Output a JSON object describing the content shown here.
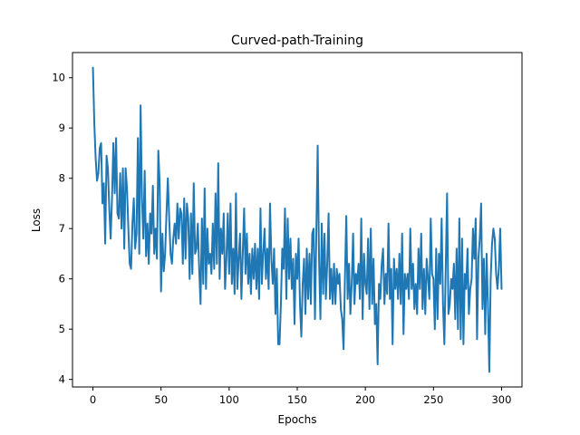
{
  "chart_data": {
    "type": "line",
    "title": "Curved-path-Training",
    "xlabel": "Epochs",
    "ylabel": "Loss",
    "xlim": [
      -15,
      315
    ],
    "ylim": [
      3.85,
      10.5
    ],
    "xticks": [
      0,
      50,
      100,
      150,
      200,
      250,
      300
    ],
    "yticks": [
      4,
      5,
      6,
      7,
      8,
      9,
      10
    ],
    "grid": false,
    "line_color": "#1f77b4",
    "series": [
      {
        "values": [
          10.2,
          9.1,
          8.4,
          7.95,
          8.1,
          8.6,
          8.7,
          7.5,
          7.9,
          6.7,
          8.45,
          8.2,
          7.4,
          6.8,
          7.6,
          8.7,
          7.7,
          8.8,
          7.3,
          7.2,
          8.1,
          7.0,
          8.2,
          6.6,
          8.2,
          7.8,
          7.0,
          6.3,
          6.2,
          7.1,
          7.6,
          6.6,
          6.9,
          8.8,
          6.5,
          9.45,
          7.6,
          6.8,
          8.15,
          6.45,
          7.1,
          6.3,
          7.3,
          6.9,
          7.85,
          6.5,
          7.0,
          6.4,
          8.55,
          7.9,
          5.75,
          6.9,
          6.15,
          6.5,
          7.3,
          8.0,
          7.2,
          6.5,
          6.3,
          6.8,
          7.1,
          6.7,
          7.5,
          6.8,
          7.4,
          7.3,
          6.3,
          7.6,
          6.4,
          7.5,
          7.2,
          6.0,
          7.3,
          6.1,
          7.9,
          6.5,
          6.6,
          7.1,
          6.2,
          5.5,
          7.2,
          5.9,
          7.8,
          5.8,
          7.0,
          6.3,
          6.5,
          6.1,
          7.1,
          6.2,
          7.7,
          6.3,
          8.3,
          6.0,
          7.0,
          6.5,
          7.3,
          5.8,
          6.4,
          7.3,
          6.1,
          7.5,
          5.9,
          6.6,
          5.7,
          7.7,
          5.8,
          6.4,
          6.9,
          5.6,
          6.5,
          7.4,
          6.1,
          6.9,
          5.9,
          6.5,
          5.7,
          6.6,
          6.0,
          6.7,
          5.8,
          6.6,
          5.6,
          7.4,
          5.9,
          6.5,
          7.0,
          6.0,
          6.6,
          5.8,
          7.5,
          6.4,
          5.9,
          6.6,
          5.3,
          6.2,
          4.7,
          4.7,
          5.5,
          6.6,
          6.2,
          7.4,
          5.6,
          7.2,
          6.0,
          6.8,
          5.8,
          6.4,
          5.1,
          6.5,
          6.0,
          6.8,
          5.5,
          4.85,
          5.9,
          6.4,
          5.3,
          6.6,
          5.6,
          6.5,
          5.5,
          6.9,
          7.0,
          5.2,
          6.9,
          8.65,
          6.4,
          5.2,
          7.1,
          5.7,
          6.9,
          5.6,
          6.3,
          7.3,
          5.6,
          6.2,
          5.5,
          6.3,
          5.5,
          6.2,
          5.9,
          6.1,
          5.4,
          5.2,
          4.6,
          6.0,
          7.25,
          5.6,
          6.3,
          5.3,
          5.9,
          6.9,
          5.5,
          6.1,
          5.9,
          6.3,
          5.6,
          7.2,
          5.2,
          6.5,
          5.9,
          5.7,
          6.8,
          5.4,
          7.0,
          5.5,
          6.4,
          5.1,
          5.5,
          4.3,
          5.9,
          5.6,
          6.3,
          6.6,
          5.5,
          6.1,
          5.7,
          7.1,
          5.6,
          6.2,
          4.7,
          6.4,
          5.8,
          6.2,
          5.6,
          6.5,
          5.5,
          6.9,
          4.9,
          6.1,
          5.8,
          6.1,
          5.6,
          7.0,
          5.8,
          6.3,
          5.4,
          5.9,
          5.3,
          6.6,
          5.8,
          6.9,
          5.4,
          6.2,
          5.3,
          6.4,
          6.0,
          5.6,
          7.2,
          6.1,
          6.0,
          5.0,
          6.6,
          5.2,
          6.5,
          5.9,
          7.2,
          5.5,
          4.7,
          6.2,
          7.7,
          5.3,
          5.5,
          6.0,
          5.8,
          6.3,
          5.2,
          6.6,
          5.0,
          7.2,
          4.8,
          6.8,
          4.7,
          6.1,
          5.8,
          6.6,
          5.3,
          5.8,
          6.0,
          7.0,
          6.4,
          7.2,
          4.8,
          6.4,
          6.8,
          7.5,
          5.4,
          6.4,
          4.9,
          6.5,
          5.5,
          4.15,
          6.0,
          6.7,
          7.0,
          6.8,
          6.1,
          5.8,
          6.2,
          7.0,
          5.8
        ]
      }
    ]
  }
}
